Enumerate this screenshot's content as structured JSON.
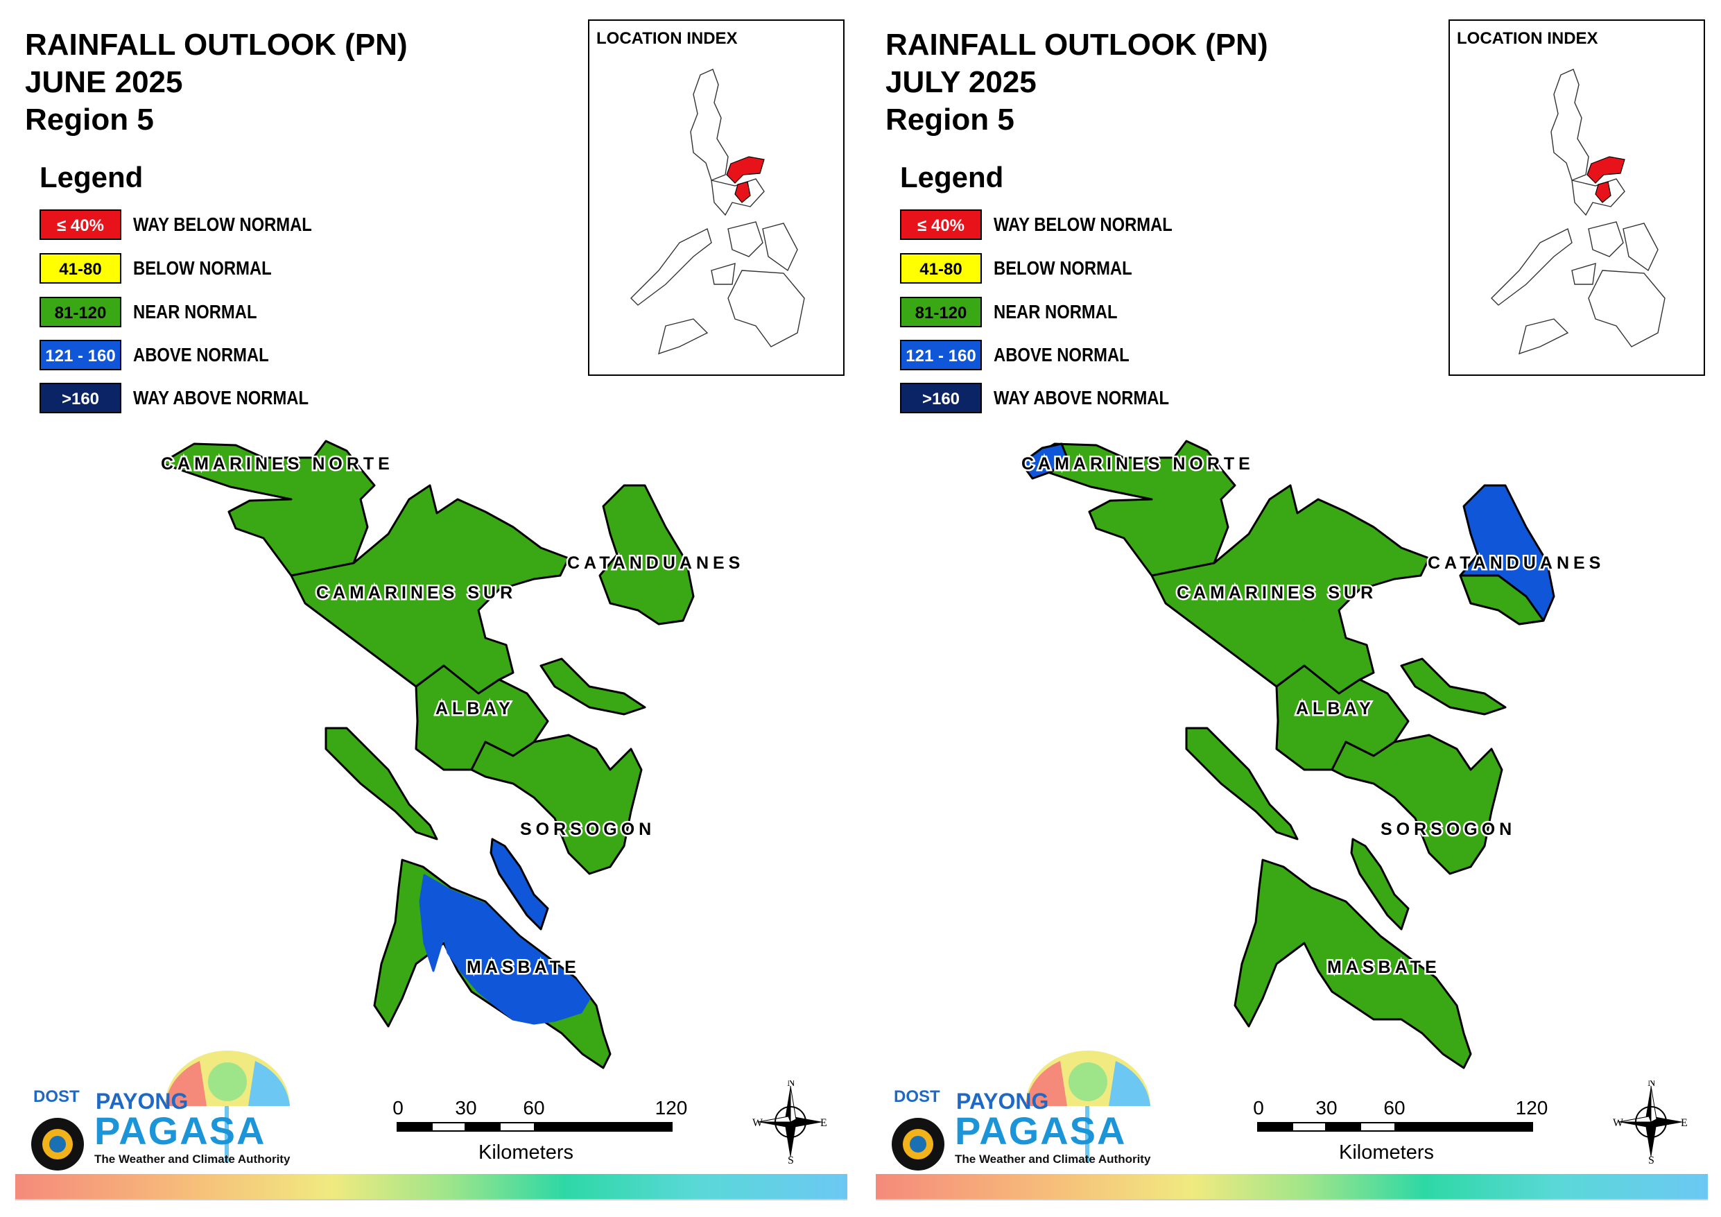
{
  "colors": {
    "way_below": "#e8121a",
    "below": "#ffff00",
    "near": "#3aa815",
    "above": "#1056d8",
    "way_above": "#0a2465"
  },
  "legend": {
    "title": "Legend",
    "items": [
      {
        "range": "≤ 40%",
        "label": "WAY BELOW NORMAL",
        "key": "way_below"
      },
      {
        "range": "41-80",
        "label": "BELOW NORMAL",
        "key": "below"
      },
      {
        "range": "81-120",
        "label": "NEAR NORMAL",
        "key": "near"
      },
      {
        "range": "121 - 160",
        "label": "ABOVE NORMAL",
        "key": "above"
      },
      {
        "range": ">160",
        "label": "WAY ABOVE NORMAL",
        "key": "way_above"
      }
    ]
  },
  "inset_title": "LOCATION INDEX",
  "provinces": {
    "camarines_norte": "CAMARINES NORTE",
    "camarines_sur": "CAMARINES SUR",
    "catanduanes": "CATANDUANES",
    "albay": "ALBAY",
    "sorsogon": "SORSOGON",
    "masbate": "MASBATE"
  },
  "scale": {
    "ticks": [
      "0",
      "30",
      "60",
      "120"
    ],
    "unit": "Kilometers"
  },
  "compass": {
    "n": "N",
    "s": "S",
    "e": "E",
    "w": "W"
  },
  "logo": {
    "dost": "DOST",
    "payong": "PAYONG",
    "pagasa": "PAGASA",
    "tagline": "The Weather and Climate Authority"
  },
  "panels": [
    {
      "title_line1": "RAINFALL OUTLOOK (PN)",
      "title_line2": "JUNE 2025",
      "title_line3": "Region 5",
      "province_outlook": {
        "camarines_norte": "near",
        "camarines_sur": "near",
        "catanduanes": "near",
        "albay": "near",
        "sorsogon": "near",
        "masbate": "near, with above normal in the north-central mainland and the Ticao island"
      }
    },
    {
      "title_line1": "RAINFALL OUTLOOK (PN)",
      "title_line2": "JULY 2025",
      "title_line3": "Region 5",
      "province_outlook": {
        "camarines_norte": "near, with above normal at the western tip",
        "camarines_sur": "near",
        "catanduanes": "near, with above normal in the northern and eastern part",
        "albay": "near",
        "sorsogon": "near",
        "masbate": "near"
      }
    }
  ]
}
